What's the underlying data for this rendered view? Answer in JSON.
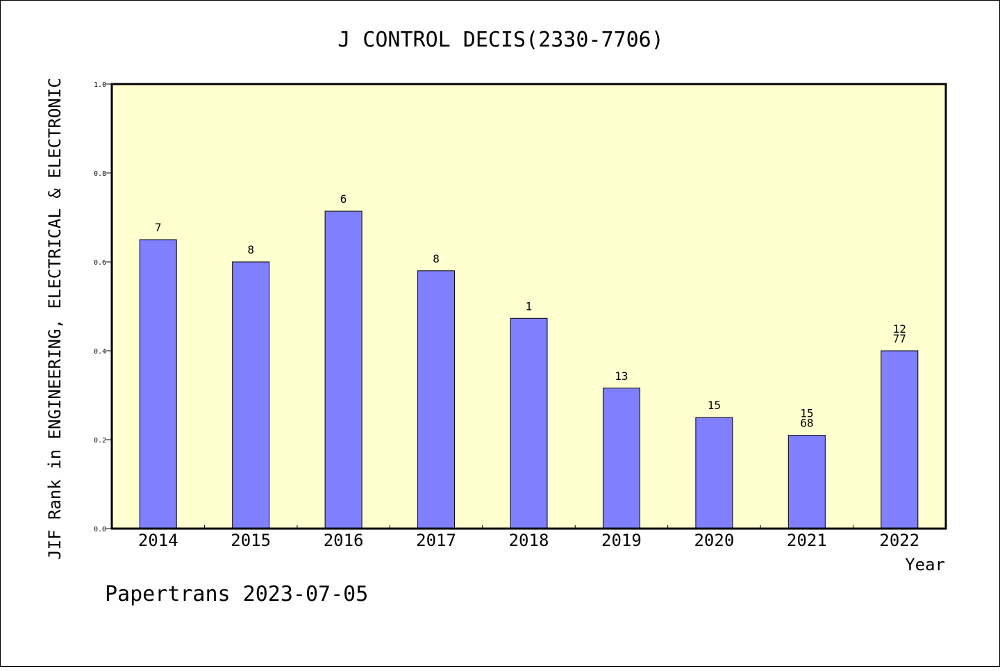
{
  "chart_data": {
    "type": "bar",
    "title": "J CONTROL DECIS(2330-7706)",
    "xlabel": "Year",
    "ylabel": "JIF Rank in ENGINEERING, ELECTRICAL & ELECTRONIC",
    "ylim": [
      0,
      1.0
    ],
    "yticks": [
      "0.0",
      "0.2",
      "0.4",
      "0.6",
      "0.8",
      "1.0"
    ],
    "categories": [
      "2014",
      "2015",
      "2016",
      "2017",
      "2018",
      "2019",
      "2020",
      "2021",
      "2022"
    ],
    "values": [
      0.65,
      0.6,
      0.714,
      0.58,
      0.473,
      0.316,
      0.25,
      0.21,
      0.4
    ],
    "bar_labels": [
      [
        "7"
      ],
      [
        "8"
      ],
      [
        "6"
      ],
      [
        "8"
      ],
      [
        "1"
      ],
      [
        "13"
      ],
      [
        "15"
      ],
      [
        "15",
        "68"
      ],
      [
        "12",
        "77"
      ]
    ],
    "grid": false,
    "colors": {
      "bar": "#8080ff",
      "plot_background": "#ffffd0"
    }
  },
  "footer": "Papertrans 2023-07-05"
}
